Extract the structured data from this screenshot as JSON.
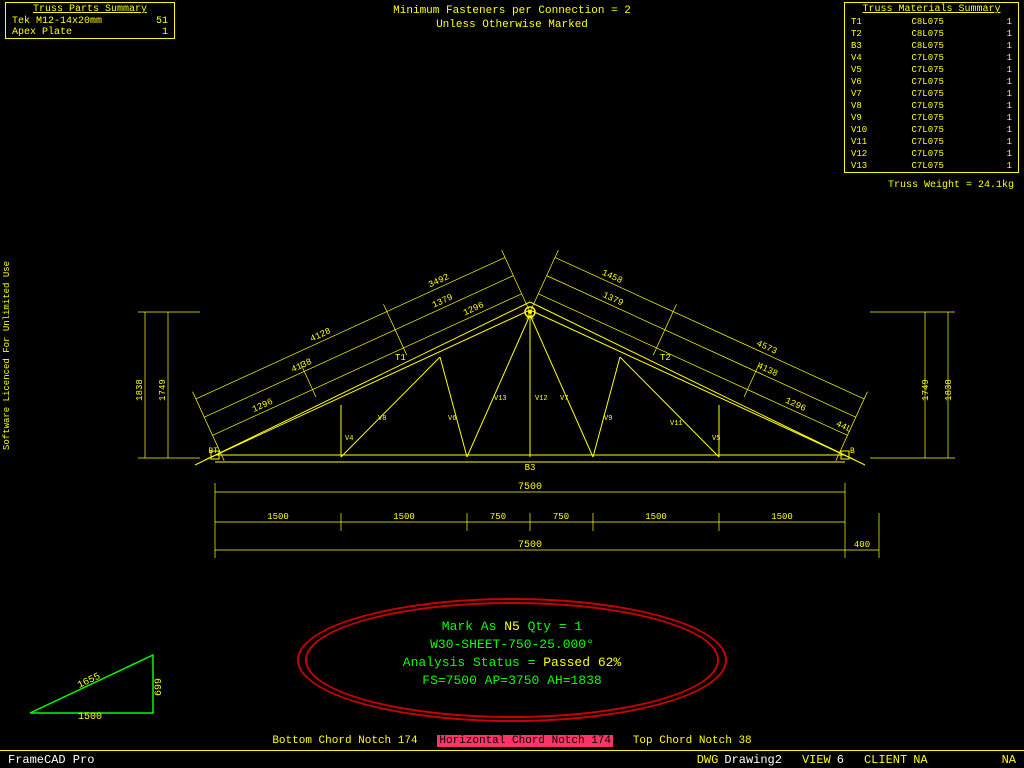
{
  "header": {
    "line1": "Minimum Fasteners per Connection = 2",
    "line2": "Unless Otherwise Marked"
  },
  "parts_panel": {
    "title": "Truss Parts Summary",
    "rows": [
      {
        "label": "Tek M12-14x20mm",
        "qty": "51"
      },
      {
        "label": "Apex Plate",
        "qty": "1"
      }
    ]
  },
  "materials_panel": {
    "title": "Truss Materials Summary",
    "rows": [
      {
        "a": "T1",
        "b": "C8L075",
        "c": "1"
      },
      {
        "a": "T2",
        "b": "C8L075",
        "c": "1"
      },
      {
        "a": "B3",
        "b": "C8L075",
        "c": "1"
      },
      {
        "a": "V4",
        "b": "C7L075",
        "c": "1"
      },
      {
        "a": "V5",
        "b": "C7L075",
        "c": "1"
      },
      {
        "a": "V6",
        "b": "C7L075",
        "c": "1"
      },
      {
        "a": "V7",
        "b": "C7L075",
        "c": "1"
      },
      {
        "a": "V8",
        "b": "C7L075",
        "c": "1"
      },
      {
        "a": "V9",
        "b": "C7L075",
        "c": "1"
      },
      {
        "a": "V10",
        "b": "C7L075",
        "c": "1"
      },
      {
        "a": "V11",
        "b": "C7L075",
        "c": "1"
      },
      {
        "a": "V12",
        "b": "C7L075",
        "c": "1"
      },
      {
        "a": "V13",
        "b": "C7L075",
        "c": "1"
      }
    ],
    "weight_text": "Truss Weight = 24.1kg"
  },
  "side_text": "Software Licenced For Unlimited Use",
  "truss": {
    "span": 7500,
    "segments": [
      1500,
      1500,
      750,
      750,
      1500,
      1500
    ],
    "overall_bottom": 7500,
    "right_ext": 400,
    "left_heights": {
      "outer": "1838",
      "inner": "1749"
    },
    "right_heights": {
      "outer": "1838",
      "inner": "1749"
    },
    "left_chord_top": [
      "4128",
      "3492"
    ],
    "right_chord_top": [
      "1458",
      "4573"
    ],
    "left_chord_bot": [
      "4138",
      "1379"
    ],
    "right_chord_bot": [
      "1379",
      "4138"
    ],
    "left_lower": [
      "1296",
      "T1",
      "1296"
    ],
    "right_lower": [
      "T2",
      "1296",
      "44L"
    ],
    "labels": {
      "bottom_chord": "B3",
      "bt_left": "BT",
      "bt_right": "B"
    },
    "web_labels": [
      "V4",
      "V8",
      "V6",
      "V13",
      "V12",
      "V7",
      "V9",
      "V11",
      "V5"
    ],
    "colors": {
      "line": "#ffff00",
      "background": "#000000",
      "apex_highlight": "#ffff00"
    }
  },
  "triangle": {
    "base": "1500",
    "height": "699",
    "hypotenuse": "1655",
    "color": "#00ff00"
  },
  "status": {
    "line1_prefix": "Mark As ",
    "line1_mid": "N5",
    "line1_suffix": " Qty = 1",
    "line2": "W30-SHEET-750-25.000°",
    "line3_prefix": "Analysis Status = ",
    "line3_value": "Passed 62%",
    "line4": "FS=7500 AP=3750 AH=1838"
  },
  "notch": {
    "left": "Bottom Chord Notch 174",
    "mid": "Horizontal Chord Notch 174",
    "right": "Top Chord Notch 38"
  },
  "footer": {
    "app": "FrameCAD Pro",
    "dwg_label": "DWG",
    "dwg_value": "Drawing2",
    "view_label": "VIEW",
    "view_value": "6",
    "client_label": "CLIENT",
    "client_value": "NA",
    "right_value": "NA"
  }
}
